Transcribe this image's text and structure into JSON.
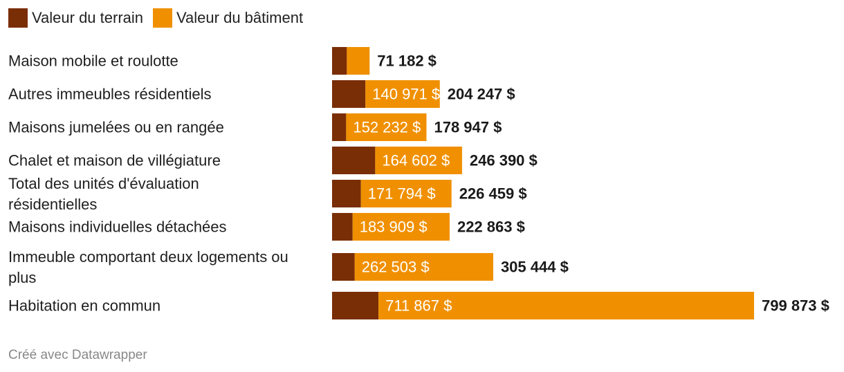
{
  "legend": [
    {
      "label": "Valeur du terrain",
      "color": "#7a2e06"
    },
    {
      "label": "Valeur du bâtiment",
      "color": "#f09000"
    }
  ],
  "footer": "Créé avec Datawrapper",
  "chart_data": {
    "type": "bar",
    "orientation": "horizontal",
    "stacked": true,
    "categories": [
      "Maison mobile et roulotte",
      "Autres immeubles résidentiels",
      "Maisons jumelées ou en rangée",
      "Chalet et maison de villégiature",
      "Total des unités d'évaluation résidentielles",
      "Maisons individuelles détachées",
      "Immeuble comportant deux logements ou plus",
      "Habitation en commun"
    ],
    "series": [
      {
        "name": "Valeur du terrain",
        "color": "#7a2e06",
        "values": [
          28000,
          63276,
          26715,
          81788,
          54665,
          38954,
          42941,
          88006
        ]
      },
      {
        "name": "Valeur du bâtiment",
        "color": "#f09000",
        "values": [
          43182,
          140971,
          152232,
          164602,
          171794,
          183909,
          262503,
          711867
        ]
      }
    ],
    "building_labels": [
      "",
      "140 971 $",
      "152 232 $",
      "164 602 $",
      "171 794 $",
      "183 909 $",
      "262 503 $",
      "711 867 $"
    ],
    "total_labels": [
      "71 182 $",
      "204 247 $",
      "178 947 $",
      "246 390 $",
      "226 459 $",
      "222 863 $",
      "305 444 $",
      "799 873 $"
    ],
    "totals": [
      71182,
      204247,
      178947,
      246390,
      226459,
      222863,
      305444,
      799873
    ],
    "xlim": [
      0,
      799873
    ],
    "legend_position": "top-left",
    "grid": false
  }
}
